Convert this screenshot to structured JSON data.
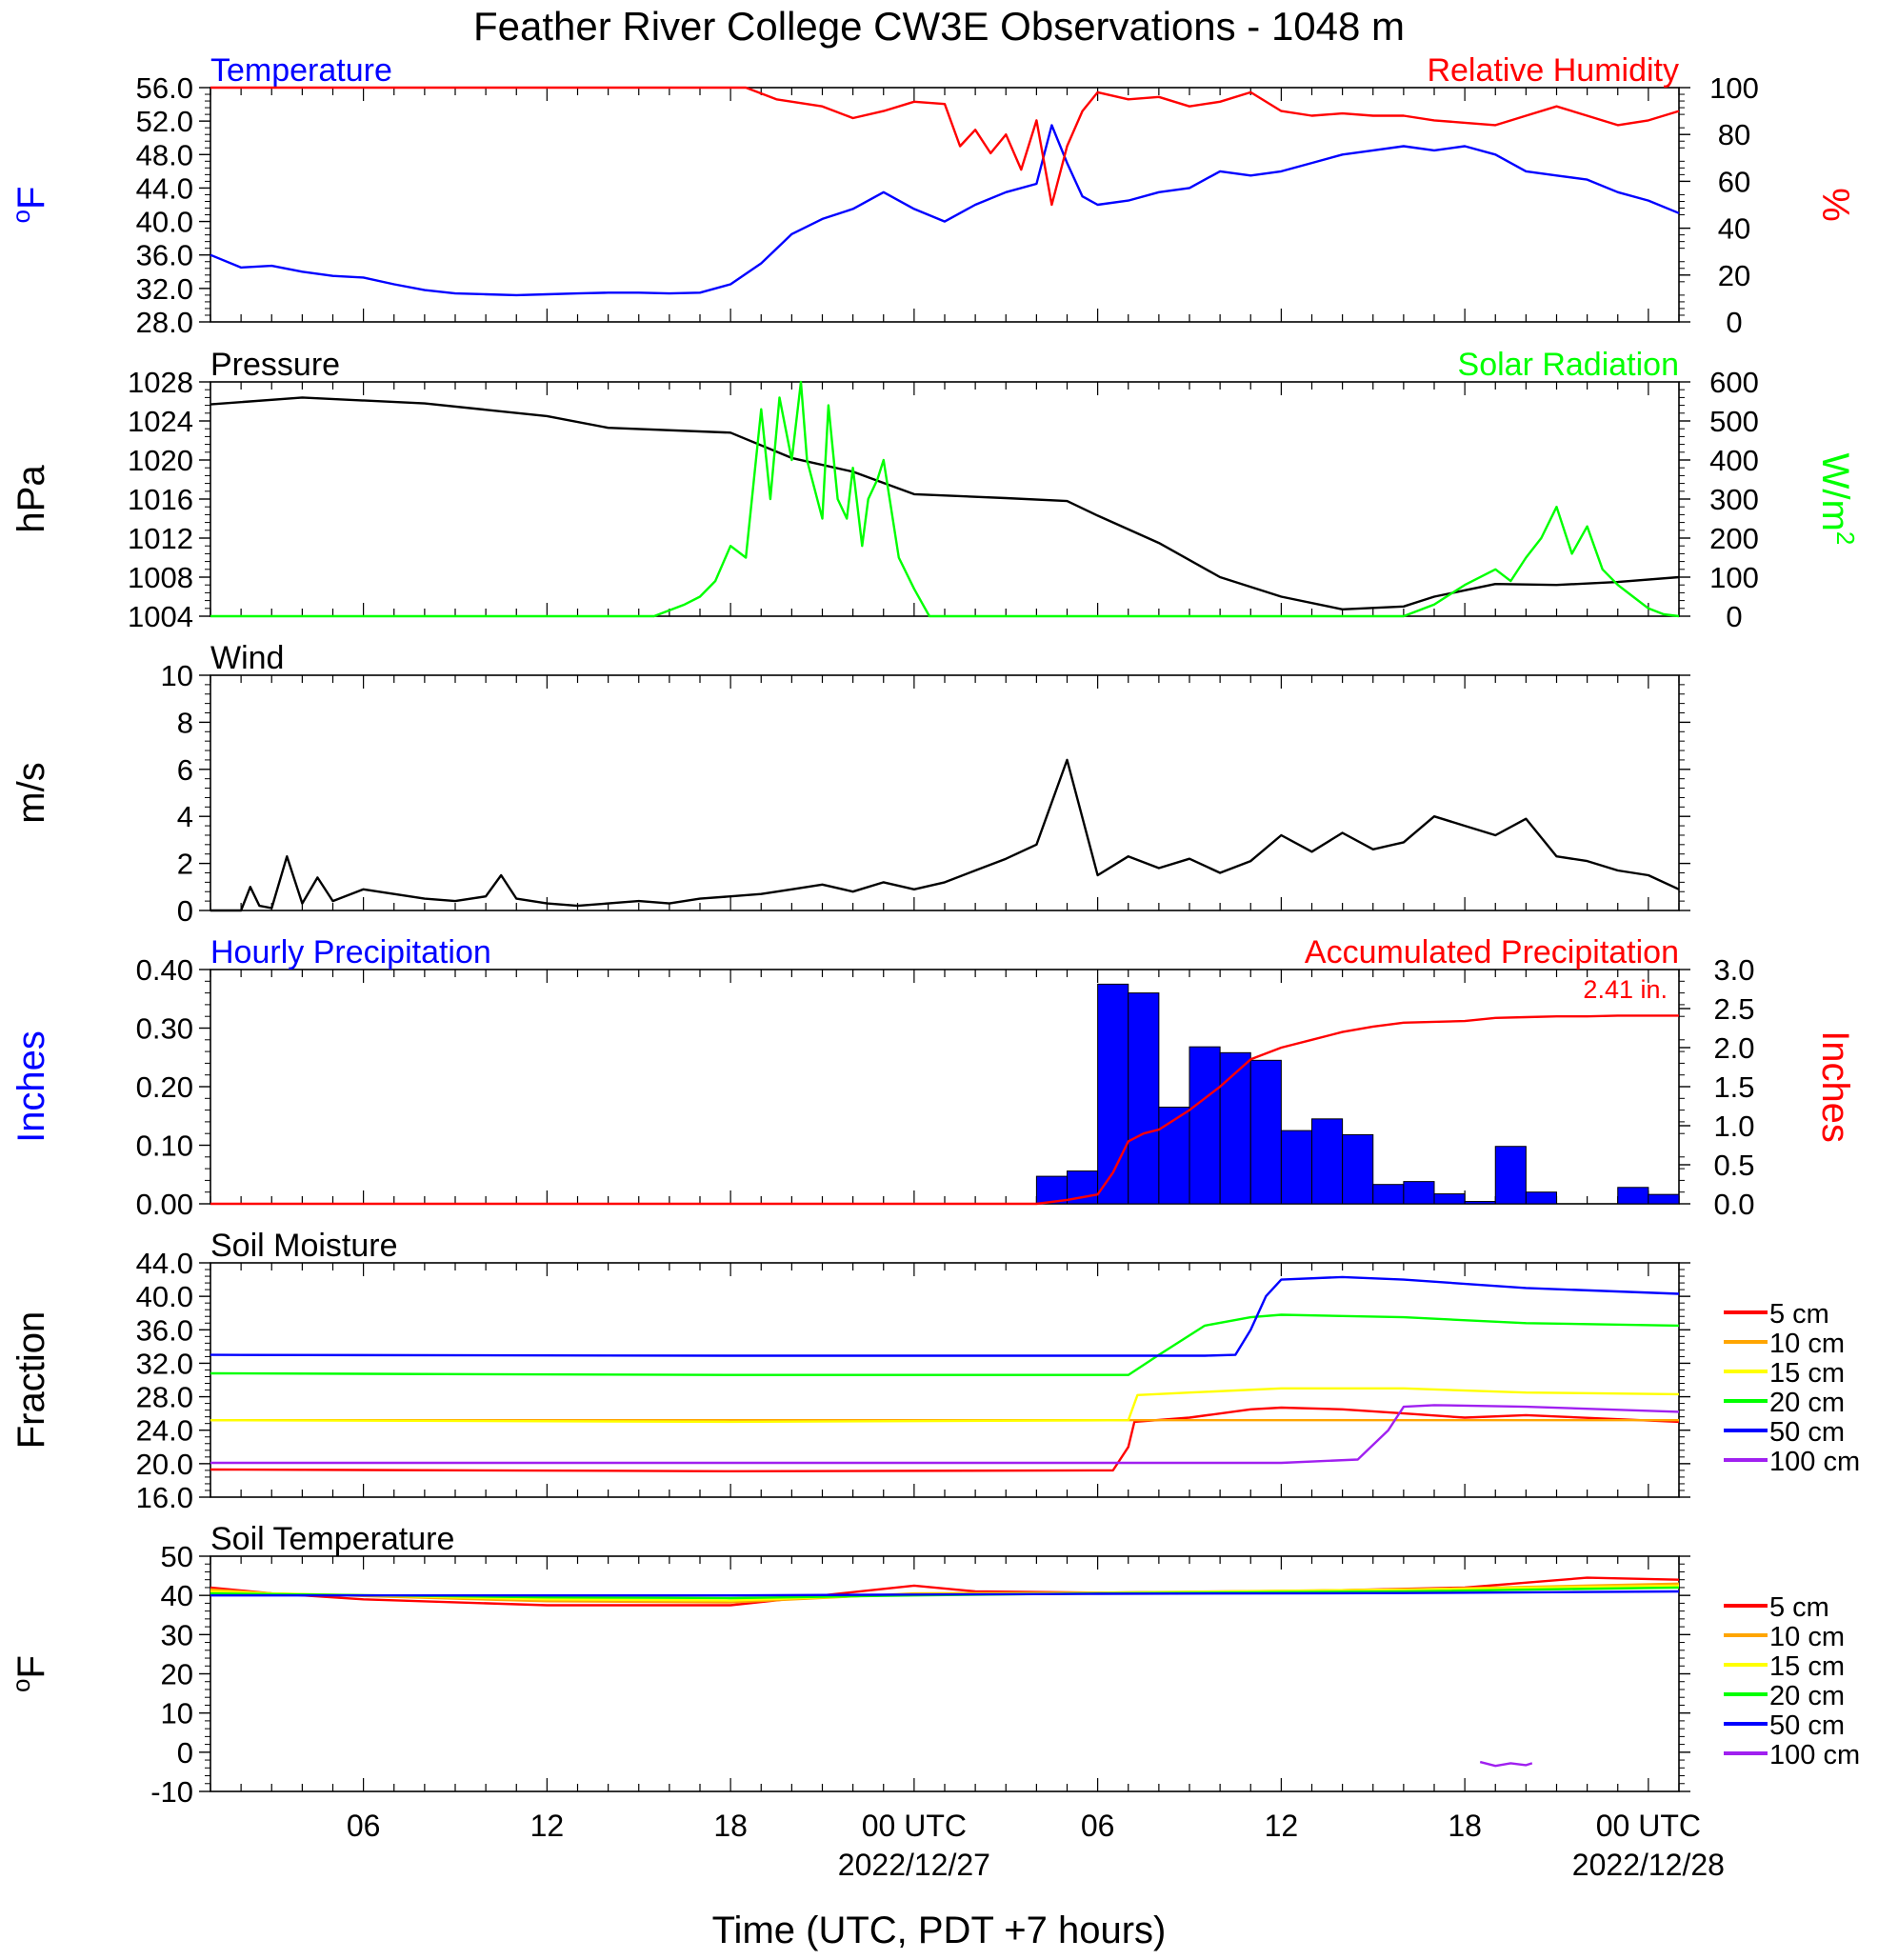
{
  "title": "Feather River College CW3E Observations - 1048 m",
  "x_axis": {
    "label": "Time (UTC, PDT +7 hours)",
    "ticks": [
      "06",
      "12",
      "18",
      "00 UTC",
      "06",
      "12",
      "18",
      "00 UTC"
    ],
    "tick_hours": [
      6,
      12,
      18,
      24,
      30,
      36,
      42,
      48
    ],
    "dates": [
      "2022/12/27",
      "2022/12/28"
    ],
    "date_hours": [
      24,
      48
    ],
    "range_hours": [
      1,
      49
    ]
  },
  "colors": {
    "blue": "#0000ff",
    "red": "#ff0000",
    "green": "#00ff00",
    "black": "#000000",
    "orange": "#ffa500",
    "yellow": "#ffff00",
    "purple": "#a020f0"
  },
  "chart_data": [
    {
      "type": "line",
      "title_left": "Temperature",
      "title_right": "Relative Humidity",
      "ylabel_left": "oF",
      "ylabel_right": "%",
      "ylim_left": [
        28,
        56
      ],
      "yticks_left": [
        "28.0",
        "32.0",
        "36.0",
        "40.0",
        "44.0",
        "48.0",
        "52.0",
        "56.0"
      ],
      "ylim_right": [
        0,
        100
      ],
      "yticks_right": [
        "0",
        "20",
        "40",
        "60",
        "80",
        "100"
      ],
      "series": [
        {
          "name": "Temperature",
          "axis": "left",
          "color": "#0000ff",
          "x": [
            1,
            2,
            3,
            4,
            5,
            6,
            7,
            8,
            9,
            10,
            11,
            12,
            13,
            14,
            15,
            16,
            17,
            18,
            19,
            20,
            21,
            22,
            23,
            24,
            25,
            26,
            27,
            28,
            28.5,
            29,
            29.5,
            30,
            31,
            32,
            33,
            34,
            35,
            36,
            37,
            38,
            39,
            40,
            41,
            42,
            43,
            44,
            45,
            46,
            47,
            48,
            49
          ],
          "values": [
            36,
            34.5,
            34.7,
            34,
            33.5,
            33.3,
            32.5,
            31.8,
            31.4,
            31.3,
            31.2,
            31.3,
            31.4,
            31.5,
            31.5,
            31.4,
            31.5,
            32.5,
            35,
            38.5,
            40.3,
            41.5,
            43.5,
            41.5,
            40,
            42,
            43.5,
            44.5,
            51.5,
            47,
            43,
            42,
            42.5,
            43.5,
            44,
            46,
            45.5,
            46,
            47,
            48,
            48.5,
            49,
            48.5,
            49,
            48,
            46,
            45.5,
            45,
            43.5,
            42.5,
            41
          ]
        },
        {
          "name": "Relative Humidity",
          "axis": "right",
          "color": "#ff0000",
          "x": [
            1,
            18.5,
            19.5,
            21,
            22,
            23,
            24,
            25,
            25.5,
            26,
            26.5,
            27,
            27.5,
            28,
            28.5,
            29,
            29.5,
            30,
            31,
            32,
            33,
            34,
            35,
            36,
            37,
            38,
            39,
            40,
            41,
            42,
            43,
            44,
            45,
            46,
            47,
            48,
            49
          ],
          "values": [
            100,
            100,
            95,
            92,
            87,
            90,
            94,
            93,
            75,
            82,
            72,
            80,
            65,
            86,
            50,
            75,
            90,
            98,
            95,
            96,
            92,
            94,
            98,
            90,
            88,
            89,
            88,
            88,
            86,
            85,
            84,
            88,
            92,
            88,
            84,
            86,
            90
          ]
        }
      ]
    },
    {
      "type": "line",
      "title_left": "Pressure",
      "title_right": "Solar Radiation",
      "ylabel_left": "hPa",
      "ylabel_right": "W/m2",
      "ylim_left": [
        1004,
        1028
      ],
      "yticks_left": [
        "1004",
        "1008",
        "1012",
        "1016",
        "1020",
        "1024",
        "1028"
      ],
      "ylim_right": [
        0,
        600
      ],
      "yticks_right": [
        "0",
        "100",
        "200",
        "300",
        "400",
        "500",
        "600"
      ],
      "series": [
        {
          "name": "Pressure",
          "axis": "left",
          "color": "#000000",
          "x": [
            1,
            4,
            8,
            12,
            14,
            18,
            20,
            22,
            24,
            27,
            29,
            30,
            32,
            34,
            36,
            38,
            40,
            41,
            43,
            45,
            47,
            49
          ],
          "values": [
            1025.7,
            1026.4,
            1025.8,
            1024.5,
            1023.3,
            1022.8,
            1020.2,
            1018.8,
            1016.5,
            1016.1,
            1015.8,
            1014.3,
            1011.5,
            1008,
            1006,
            1004.7,
            1005,
            1006,
            1007.3,
            1007.2,
            1007.5,
            1008
          ]
        },
        {
          "name": "Solar Radiation",
          "axis": "right",
          "color": "#00ff00",
          "x": [
            1,
            15.5,
            16.5,
            17,
            17.5,
            18,
            18.5,
            19,
            19.3,
            19.6,
            20,
            20.3,
            20.5,
            21,
            21.2,
            21.5,
            21.8,
            22,
            22.3,
            22.5,
            22.8,
            23,
            23.5,
            24,
            24.5,
            28,
            40,
            41,
            42,
            43,
            43.5,
            44,
            44.5,
            45,
            45.5,
            46,
            46.5,
            47,
            47.5,
            48,
            48.5,
            49
          ],
          "values": [
            0,
            0,
            30,
            50,
            90,
            180,
            150,
            530,
            300,
            560,
            400,
            600,
            400,
            250,
            540,
            300,
            250,
            380,
            180,
            300,
            350,
            400,
            150,
            70,
            0,
            0,
            0,
            30,
            80,
            120,
            90,
            150,
            200,
            280,
            160,
            230,
            120,
            80,
            50,
            20,
            5,
            0
          ]
        }
      ]
    },
    {
      "type": "line",
      "title_left": "Wind",
      "ylabel_left": "m/s",
      "ylim_left": [
        0,
        10
      ],
      "yticks_left": [
        "0",
        "2",
        "4",
        "6",
        "8",
        "10"
      ],
      "series": [
        {
          "name": "Wind speed",
          "axis": "left",
          "color": "#000000",
          "x": [
            1,
            2,
            2.3,
            2.6,
            3,
            3.5,
            4,
            4.5,
            5,
            6,
            7,
            8,
            9,
            10,
            10.5,
            11,
            12,
            13,
            14,
            15,
            16,
            17,
            18,
            19,
            20,
            21,
            22,
            23,
            24,
            25,
            26,
            27,
            28,
            29,
            30,
            31,
            32,
            33,
            34,
            35,
            36,
            37,
            38,
            39,
            40,
            41,
            42,
            43,
            44,
            45,
            46,
            47,
            48,
            49
          ],
          "values": [
            0,
            0,
            1,
            0.2,
            0.1,
            2.3,
            0.3,
            1.4,
            0.4,
            0.9,
            0.7,
            0.5,
            0.4,
            0.6,
            1.5,
            0.5,
            0.3,
            0.2,
            0.3,
            0.4,
            0.3,
            0.5,
            0.6,
            0.7,
            0.9,
            1.1,
            0.8,
            1.2,
            0.9,
            1.2,
            1.7,
            2.2,
            2.8,
            6.4,
            1.5,
            2.3,
            1.8,
            2.2,
            1.6,
            2.1,
            3.2,
            2.5,
            3.3,
            2.6,
            2.9,
            4.0,
            3.6,
            3.2,
            3.9,
            2.3,
            2.1,
            1.7,
            1.5,
            0.9
          ]
        }
      ]
    },
    {
      "type": "bar",
      "title_left": "Hourly Precipitation",
      "title_right": "Accumulated Precipitation",
      "annotation": "2.41 in.",
      "ylabel_left": "Inches",
      "ylabel_right": "Inches",
      "ylim_left": [
        0,
        0.4
      ],
      "yticks_left": [
        "0.00",
        "0.10",
        "0.20",
        "0.30",
        "0.40"
      ],
      "ylim_right": [
        0,
        3
      ],
      "yticks_right": [
        "0.0",
        "0.5",
        "1.0",
        "1.5",
        "2.0",
        "2.5",
        "3.0"
      ],
      "series": [
        {
          "name": "Hourly Precipitation",
          "axis": "left",
          "color": "#0000ff",
          "x": [
            28,
            29,
            30,
            31,
            32,
            33,
            34,
            35,
            36,
            37,
            38,
            39,
            40,
            41,
            42,
            43,
            44,
            47,
            48
          ],
          "values": [
            0.047,
            0.056,
            0.375,
            0.36,
            0.165,
            0.268,
            0.258,
            0.245,
            0.125,
            0.145,
            0.118,
            0.033,
            0.038,
            0.017,
            0.004,
            0.098,
            0.02,
            0.028,
            0.016
          ]
        },
        {
          "name": "Accumulated Precipitation",
          "axis": "right",
          "color": "#ff0000",
          "x": [
            1,
            28,
            29,
            30,
            30.5,
            31,
            31.5,
            32,
            33,
            34,
            35,
            36,
            37,
            38,
            39,
            40,
            41,
            42,
            43,
            44,
            45,
            46,
            47,
            48,
            49
          ],
          "values": [
            0,
            0,
            0.05,
            0.12,
            0.4,
            0.8,
            0.9,
            0.95,
            1.2,
            1.5,
            1.85,
            2.0,
            2.1,
            2.2,
            2.27,
            2.32,
            2.33,
            2.34,
            2.38,
            2.39,
            2.4,
            2.4,
            2.41,
            2.41,
            2.41
          ]
        }
      ]
    },
    {
      "type": "line",
      "title_left": "Soil Moisture",
      "ylabel_left": "Fraction",
      "ylim_left": [
        16,
        44
      ],
      "yticks_left": [
        "16.0",
        "20.0",
        "24.0",
        "28.0",
        "32.0",
        "36.0",
        "40.0",
        "44.0"
      ],
      "legend": [
        "5 cm",
        "10 cm",
        "15 cm",
        "20 cm",
        "50 cm",
        "100 cm"
      ],
      "series": [
        {
          "name": "5 cm",
          "axis": "left",
          "color": "#ff0000",
          "x": [
            1,
            10,
            18,
            30.5,
            31,
            31.2,
            33,
            35,
            36,
            38,
            40,
            42,
            44,
            49
          ],
          "values": [
            19.3,
            19.2,
            19.1,
            19.2,
            22,
            25,
            25.5,
            26.5,
            26.7,
            26.5,
            26,
            25.5,
            25.8,
            25
          ]
        },
        {
          "name": "10 cm",
          "axis": "left",
          "color": "#ffa500",
          "x": [
            1,
            49
          ],
          "values": [
            25.2,
            25.2
          ]
        },
        {
          "name": "15 cm",
          "axis": "left",
          "color": "#ffff00",
          "x": [
            1,
            18,
            31,
            31.3,
            33,
            36,
            40,
            44,
            49
          ],
          "values": [
            25.2,
            25,
            25.2,
            28.2,
            28.5,
            29,
            29,
            28.5,
            28.3
          ]
        },
        {
          "name": "20 cm",
          "axis": "left",
          "color": "#00ff00",
          "x": [
            1,
            18,
            31,
            32,
            33.5,
            35,
            36,
            40,
            44,
            49
          ],
          "values": [
            30.8,
            30.6,
            30.6,
            33,
            36.5,
            37.5,
            37.8,
            37.5,
            36.8,
            36.5
          ]
        },
        {
          "name": "50 cm",
          "axis": "left",
          "color": "#0000ff",
          "x": [
            1,
            18,
            33.5,
            34.5,
            35,
            35.5,
            36,
            38,
            40,
            44,
            49
          ],
          "values": [
            33,
            32.9,
            32.9,
            33,
            36,
            40,
            42,
            42.3,
            42,
            41,
            40.3
          ]
        },
        {
          "name": "100 cm",
          "axis": "left",
          "color": "#a020f0",
          "x": [
            1,
            36,
            38.5,
            39.5,
            40,
            41,
            44,
            49
          ],
          "values": [
            20.1,
            20.1,
            20.5,
            24,
            26.8,
            27,
            26.8,
            26.2
          ]
        }
      ]
    },
    {
      "type": "line",
      "title_left": "Soil Temperature",
      "ylabel_left": "oF",
      "ylim_left": [
        -10,
        50
      ],
      "yticks_left": [
        "-10",
        "0",
        "10",
        "20",
        "30",
        "40",
        "50"
      ],
      "legend": [
        "5 cm",
        "10 cm",
        "15 cm",
        "20 cm",
        "50 cm",
        "100 cm"
      ],
      "series": [
        {
          "name": "5 cm",
          "axis": "left",
          "color": "#ff0000",
          "x": [
            1,
            3,
            6,
            12,
            18,
            21,
            24,
            26,
            30,
            36,
            42,
            46,
            49
          ],
          "values": [
            42,
            40.5,
            39,
            37.5,
            37.5,
            40,
            42.5,
            41,
            40.7,
            41,
            42,
            44.5,
            44
          ]
        },
        {
          "name": "10 cm",
          "axis": "left",
          "color": "#ffa500",
          "x": [
            1,
            3,
            12,
            18,
            24,
            30,
            40,
            49
          ],
          "values": [
            41.5,
            40.5,
            38.5,
            38.2,
            40.5,
            40.7,
            41.5,
            43
          ]
        },
        {
          "name": "15 cm",
          "axis": "left",
          "color": "#ffff00",
          "x": [
            1,
            3,
            12,
            18,
            24,
            30,
            40,
            49
          ],
          "values": [
            41,
            40.5,
            39,
            38.7,
            40.3,
            40.6,
            41.5,
            42.5
          ]
        },
        {
          "name": "20 cm",
          "axis": "left",
          "color": "#00ff00",
          "x": [
            1,
            12,
            18,
            24,
            30,
            40,
            49
          ],
          "values": [
            40.5,
            39.5,
            39.3,
            40,
            40.5,
            41,
            42
          ]
        },
        {
          "name": "50 cm",
          "axis": "left",
          "color": "#0000ff",
          "x": [
            1,
            12,
            18,
            24,
            30,
            40,
            49
          ],
          "values": [
            40,
            40,
            40,
            40.2,
            40.4,
            40.6,
            41
          ]
        },
        {
          "name": "100 cm",
          "axis": "left",
          "color": "#a020f0",
          "x": [
            42.5,
            43,
            43.5,
            44,
            44.2
          ],
          "values": [
            -2.5,
            -3.5,
            -2.8,
            -3.3,
            -2.8
          ]
        }
      ]
    }
  ]
}
